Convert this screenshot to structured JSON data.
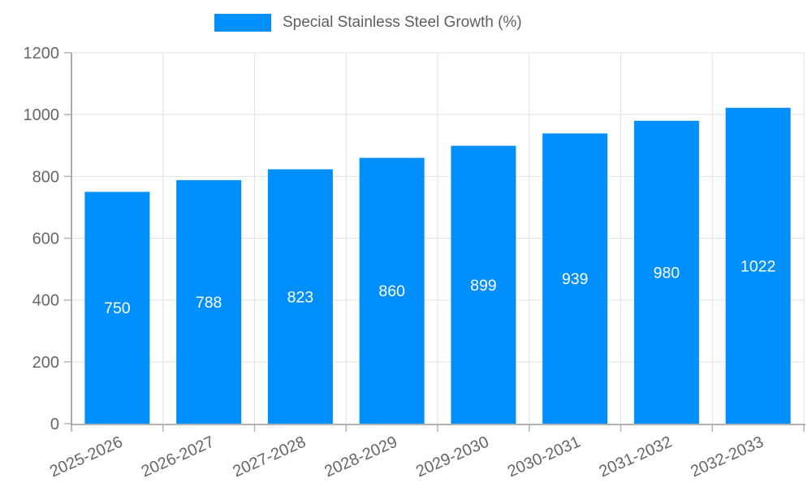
{
  "legend": {
    "label": "Special Stainless Steel Growth (%)"
  },
  "chart_data": {
    "type": "bar",
    "title": "",
    "xlabel": "",
    "ylabel": "",
    "categories": [
      "2025-2026",
      "2026-2027",
      "2027-2028",
      "2028-2029",
      "2029-2030",
      "2030-2031",
      "2031-2032",
      "2032-2033"
    ],
    "series": [
      {
        "name": "Special Stainless Steel Growth (%)",
        "values": [
          750,
          788,
          823,
          860,
          899,
          939,
          980,
          1022
        ]
      }
    ],
    "ylim": [
      0,
      1200
    ],
    "yticks": [
      0,
      200,
      400,
      600,
      800,
      1000,
      1200
    ],
    "grid": true,
    "vertical_grid": true,
    "legend_position": "top-center",
    "value_labels_inside_bars": true
  },
  "colors": {
    "bar": "#008FFB",
    "grid": "#e2e2e2",
    "axis_line": "#b3b3b3",
    "yaxis_line": "#8f8f8f",
    "tick": "#b3b3b3",
    "tick_label": "#666666",
    "value_label": "#ffffff",
    "legend_label": "#5e5e5e",
    "background": "#ffffff"
  }
}
